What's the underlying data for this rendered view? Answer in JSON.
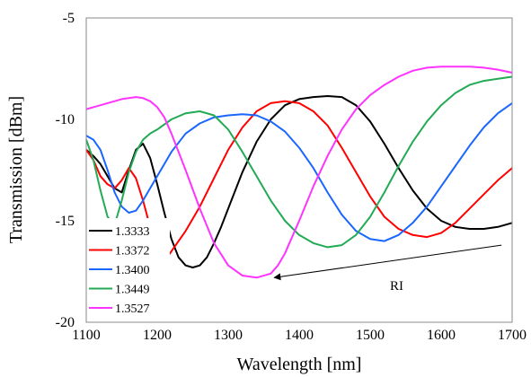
{
  "chart_data": {
    "type": "line",
    "xlabel": "Wavelength [nm]",
    "ylabel": "Transmission [dBm]",
    "xlim": [
      1100,
      1700
    ],
    "ylim": [
      -20,
      -5
    ],
    "x_ticks": [
      1100,
      1200,
      1300,
      1400,
      1500,
      1600,
      1700
    ],
    "y_ticks": [
      -5,
      -10,
      -15,
      -20
    ],
    "grid": false,
    "legend_position": "bottom-left",
    "annotation": {
      "text": "RI",
      "arrow": {
        "from": [
          1685,
          -16.2
        ],
        "to": [
          1365,
          -17.8
        ]
      }
    },
    "series": [
      {
        "name": "1.3333",
        "color": "#000000",
        "x": [
          1100,
          1110,
          1120,
          1130,
          1140,
          1150,
          1160,
          1170,
          1180,
          1190,
          1200,
          1210,
          1220,
          1230,
          1240,
          1250,
          1260,
          1270,
          1280,
          1290,
          1300,
          1320,
          1340,
          1360,
          1380,
          1400,
          1420,
          1440,
          1460,
          1480,
          1500,
          1520,
          1540,
          1560,
          1580,
          1600,
          1620,
          1640,
          1660,
          1680,
          1700
        ],
        "y": [
          -11.5,
          -11.8,
          -12.2,
          -12.8,
          -13.4,
          -13.6,
          -12.5,
          -11.5,
          -11.2,
          -11.9,
          -13.2,
          -14.6,
          -15.9,
          -16.8,
          -17.2,
          -17.3,
          -17.2,
          -16.8,
          -16.1,
          -15.3,
          -14.4,
          -12.6,
          -11.1,
          -10.0,
          -9.3,
          -9.0,
          -8.9,
          -8.85,
          -8.9,
          -9.3,
          -10.1,
          -11.2,
          -12.4,
          -13.5,
          -14.4,
          -15.0,
          -15.3,
          -15.4,
          -15.4,
          -15.3,
          -15.1
        ]
      },
      {
        "name": "1.3372",
        "color": "#ff0000",
        "x": [
          1100,
          1110,
          1120,
          1130,
          1140,
          1150,
          1160,
          1170,
          1180,
          1190,
          1200,
          1210,
          1220,
          1240,
          1260,
          1280,
          1300,
          1320,
          1340,
          1360,
          1380,
          1400,
          1420,
          1440,
          1460,
          1480,
          1500,
          1520,
          1540,
          1560,
          1580,
          1600,
          1620,
          1640,
          1660,
          1680,
          1700
        ],
        "y": [
          -11.5,
          -12.0,
          -12.8,
          -13.2,
          -13.4,
          -13.0,
          -12.4,
          -12.9,
          -14.0,
          -15.3,
          -16.6,
          -17.0,
          -16.5,
          -15.5,
          -14.3,
          -12.9,
          -11.5,
          -10.4,
          -9.6,
          -9.2,
          -9.1,
          -9.2,
          -9.6,
          -10.3,
          -11.4,
          -12.6,
          -13.8,
          -14.8,
          -15.4,
          -15.7,
          -15.8,
          -15.6,
          -15.1,
          -14.4,
          -13.7,
          -13.0,
          -12.4
        ]
      },
      {
        "name": "1.3400",
        "color": "#1a66ff",
        "x": [
          1100,
          1110,
          1120,
          1130,
          1140,
          1150,
          1160,
          1170,
          1180,
          1190,
          1200,
          1220,
          1240,
          1260,
          1280,
          1300,
          1320,
          1340,
          1360,
          1380,
          1400,
          1420,
          1440,
          1460,
          1480,
          1500,
          1520,
          1540,
          1560,
          1580,
          1600,
          1620,
          1640,
          1660,
          1680,
          1700
        ],
        "y": [
          -10.8,
          -11.0,
          -11.5,
          -12.5,
          -13.6,
          -14.3,
          -14.6,
          -14.5,
          -14.0,
          -13.4,
          -12.8,
          -11.6,
          -10.7,
          -10.2,
          -9.9,
          -9.8,
          -9.75,
          -9.8,
          -10.1,
          -10.6,
          -11.4,
          -12.4,
          -13.6,
          -14.7,
          -15.5,
          -15.9,
          -16.0,
          -15.7,
          -15.1,
          -14.3,
          -13.3,
          -12.3,
          -11.3,
          -10.4,
          -9.7,
          -9.2
        ]
      },
      {
        "name": "1.3449",
        "color": "#22aa55",
        "x": [
          1100,
          1110,
          1120,
          1130,
          1140,
          1150,
          1160,
          1170,
          1180,
          1190,
          1200,
          1220,
          1240,
          1260,
          1280,
          1300,
          1320,
          1340,
          1360,
          1380,
          1400,
          1420,
          1440,
          1460,
          1480,
          1500,
          1520,
          1540,
          1560,
          1580,
          1600,
          1620,
          1640,
          1660,
          1680,
          1700
        ],
        "y": [
          -11.0,
          -12.0,
          -13.5,
          -14.8,
          -15.2,
          -14.0,
          -12.6,
          -11.6,
          -11.0,
          -10.7,
          -10.5,
          -10.0,
          -9.7,
          -9.6,
          -9.8,
          -10.5,
          -11.6,
          -12.8,
          -14.0,
          -15.0,
          -15.7,
          -16.1,
          -16.3,
          -16.2,
          -15.7,
          -14.8,
          -13.6,
          -12.3,
          -11.1,
          -10.1,
          -9.3,
          -8.7,
          -8.3,
          -8.1,
          -8.0,
          -7.9
        ]
      },
      {
        "name": "1.3527",
        "color": "#ff33ff",
        "x": [
          1100,
          1110,
          1120,
          1130,
          1140,
          1150,
          1160,
          1170,
          1180,
          1190,
          1200,
          1210,
          1220,
          1240,
          1260,
          1280,
          1300,
          1320,
          1340,
          1360,
          1370,
          1380,
          1400,
          1420,
          1440,
          1460,
          1480,
          1500,
          1520,
          1540,
          1560,
          1580,
          1600,
          1620,
          1640,
          1660,
          1680,
          1700
        ],
        "y": [
          -9.5,
          -9.4,
          -9.3,
          -9.2,
          -9.1,
          -9.0,
          -8.95,
          -8.9,
          -8.95,
          -9.1,
          -9.4,
          -9.9,
          -10.7,
          -12.5,
          -14.4,
          -16.1,
          -17.2,
          -17.7,
          -17.8,
          -17.6,
          -17.2,
          -16.6,
          -15.0,
          -13.3,
          -11.8,
          -10.5,
          -9.5,
          -8.8,
          -8.3,
          -7.9,
          -7.6,
          -7.45,
          -7.4,
          -7.4,
          -7.4,
          -7.45,
          -7.55,
          -7.7
        ]
      }
    ]
  }
}
